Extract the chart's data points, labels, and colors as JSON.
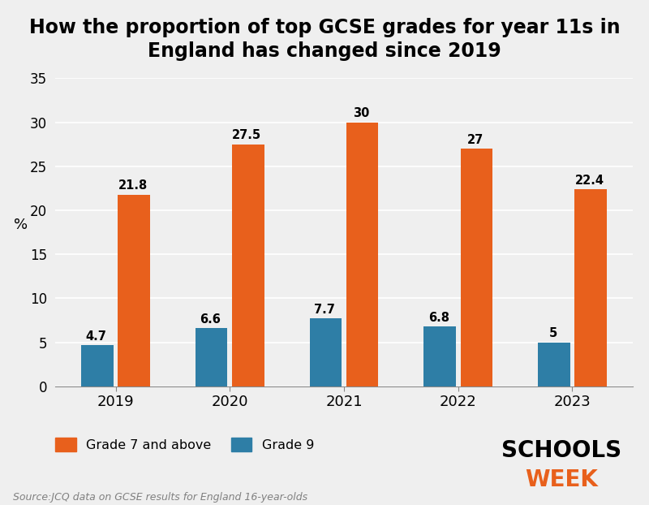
{
  "title": "How the proportion of top GCSE grades for year 11s in\nEngland has changed since 2019",
  "years": [
    "2019",
    "2020",
    "2021",
    "2022",
    "2023"
  ],
  "grade7_values": [
    21.8,
    27.5,
    30.0,
    27.0,
    22.4
  ],
  "grade9_values": [
    4.7,
    6.6,
    7.7,
    6.8,
    5.0
  ],
  "grade7_color": "#E8601C",
  "grade9_color": "#2E7EA6",
  "ylabel": "%",
  "ylim": [
    0,
    35
  ],
  "yticks": [
    0,
    5,
    10,
    15,
    20,
    25,
    30,
    35
  ],
  "background_color": "#EFEFEF",
  "title_fontsize": 17,
  "bar_width": 0.28,
  "bar_gap": 0.04,
  "source_text": "Source:JCQ data on GCSE results for England 16-year-olds",
  "legend_grade7": "Grade 7 and above",
  "legend_grade9": "Grade 9",
  "schools_week_text_schools": "SCHOOLS",
  "schools_week_text_week": "WEEK",
  "grade7_label_values": [
    "21.8",
    "27.5",
    "30",
    "27",
    "22.4"
  ],
  "grade9_label_values": [
    "4.7",
    "6.6",
    "7.7",
    "6.8",
    "5"
  ]
}
